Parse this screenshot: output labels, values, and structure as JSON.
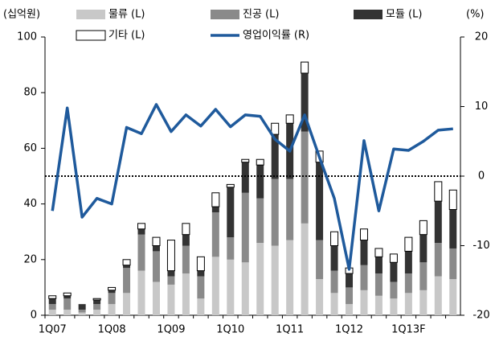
{
  "chart_data": {
    "type": "bar",
    "ylabel": "(십억원)",
    "y2label": "(%)",
    "categories": [
      "1Q07",
      null,
      null,
      null,
      "1Q08",
      null,
      null,
      null,
      "1Q09",
      null,
      null,
      null,
      "1Q10",
      null,
      null,
      null,
      "1Q11",
      null,
      null,
      null,
      "1Q12",
      null,
      null,
      null,
      "1Q13F",
      null,
      null,
      null
    ],
    "series": [
      {
        "name": "물류 (L)",
        "color": "#c8c8c8",
        "values": [
          2,
          2,
          1,
          2,
          4,
          8,
          16,
          12,
          11,
          15,
          6,
          21,
          20,
          19,
          26,
          25,
          27,
          33,
          13,
          8,
          4,
          9,
          7,
          6,
          8,
          9,
          14,
          13
        ]
      },
      {
        "name": "진공 (L)",
        "color": "#8a8a8a",
        "values": [
          2,
          4,
          1,
          2,
          4,
          9,
          13,
          11,
          3,
          10,
          8,
          16,
          8,
          25,
          16,
          24,
          22,
          33,
          14,
          8,
          6,
          9,
          8,
          6,
          7,
          10,
          12,
          11
        ]
      },
      {
        "name": "모듈 (L)",
        "color": "#333333",
        "values": [
          2,
          1,
          2,
          1.5,
          1,
          1,
          2,
          2,
          2,
          4,
          2,
          2,
          18,
          11,
          12,
          16,
          20,
          21,
          28,
          9,
          5,
          9,
          6,
          7,
          8,
          10,
          15,
          14
        ]
      },
      {
        "name": "기타 (L)",
        "color": "#ffffff",
        "values": [
          1,
          1,
          0,
          0.5,
          1,
          2,
          2,
          3,
          11,
          4,
          5,
          5,
          1,
          1,
          2,
          4,
          3,
          4,
          4,
          5,
          2,
          4,
          3,
          3,
          5,
          5,
          7,
          7
        ]
      },
      {
        "name": "영업이익률 (R)",
        "color": "#1f5a9c",
        "type": "line",
        "axis": "y2",
        "values": [
          -5,
          9.8,
          -5.9,
          -3.2,
          -4,
          7,
          6.1,
          10.3,
          6.4,
          8.8,
          7.2,
          9.6,
          7.1,
          8.8,
          8.6,
          5.3,
          3.6,
          8.8,
          2.7,
          -3.2,
          -13.4,
          5.1,
          -5,
          3.9,
          3.7,
          5,
          6.6,
          6.8
        ]
      }
    ],
    "ylim": [
      0,
      100
    ],
    "yticks": [
      0,
      20,
      40,
      60,
      80,
      100
    ],
    "y2lim": [
      -20,
      20
    ],
    "y2ticks": [
      -20,
      -10,
      0,
      10,
      20
    ],
    "reference_line_y2": 0
  }
}
